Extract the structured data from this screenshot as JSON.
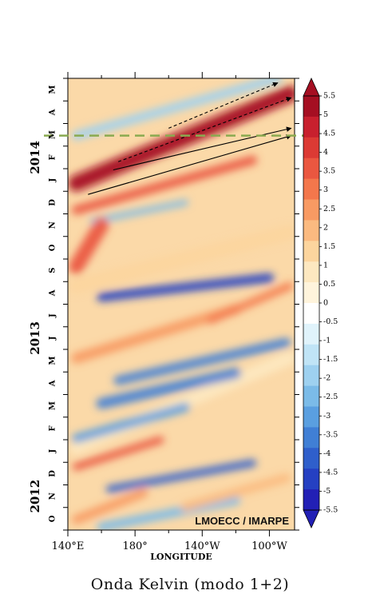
{
  "caption": "Onda Kelvin (modo 1+2)",
  "chart_data": {
    "type": "heatmap",
    "title": "",
    "xlabel": "LONGITUDE",
    "ylabel": "",
    "x_ticks": [
      "140°E",
      "180°",
      "140°W",
      "100°W"
    ],
    "x_range_deg": [
      -220,
      -85
    ],
    "month_ticks": [
      "O",
      "N",
      "D",
      "J",
      "F",
      "M",
      "A",
      "M",
      "J",
      "J",
      "A",
      "S",
      "O",
      "N",
      "D",
      "J",
      "F",
      "M",
      "A",
      "M"
    ],
    "year_labels": [
      {
        "text": "2012",
        "month_index": 1
      },
      {
        "text": "2013",
        "month_index": 8
      },
      {
        "text": "2014",
        "month_index": 16
      }
    ],
    "time_range": [
      "2012-10-01",
      "2014-05-31"
    ],
    "reference_line": {
      "date": "2014-03-15",
      "color": "#8aaa50",
      "style": "dashed"
    },
    "watermark": "LMOECC / IMARPE",
    "colorbar": {
      "labels": [
        "5.5",
        "5",
        "4.5",
        "4",
        "3.5",
        "3",
        "2.5",
        "2",
        "1.5",
        "1",
        "0.5",
        "0",
        "-0.5",
        "-1",
        "-1.5",
        "-2",
        "-2.5",
        "-3",
        "-3.5",
        "-4",
        "-4.5",
        "-5",
        "-5.5"
      ],
      "colors": [
        "#a50f22",
        "#c8202e",
        "#dc3a34",
        "#ea5740",
        "#f3774c",
        "#f89a63",
        "#fbba80",
        "#fcd59e",
        "#fde8c0",
        "#fff4dc",
        "#ffffff",
        "#e0f3fb",
        "#c0e4f6",
        "#9ed1f0",
        "#7bbbe8",
        "#5a9fe0",
        "#407fd5",
        "#2f5fcb",
        "#2540c2",
        "#2220b5"
      ]
    },
    "anomaly_bands": [
      {
        "lon_start": -215,
        "lon_end": -88,
        "date_start": "2014-01-10",
        "date_end": "2014-05-10",
        "value": 5.5,
        "width_days": 22
      },
      {
        "lon_start": -215,
        "lon_end": -110,
        "date_start": "2013-12-05",
        "date_end": "2014-02-10",
        "value": 4.0,
        "width_days": 12
      },
      {
        "lon_start": -205,
        "lon_end": -150,
        "date_start": "2013-11-20",
        "date_end": "2013-12-15",
        "value": -1.5,
        "width_days": 8
      },
      {
        "lon_start": -215,
        "lon_end": -200,
        "date_start": "2013-09-20",
        "date_end": "2013-11-15",
        "value": 4.0,
        "width_days": 20
      },
      {
        "lon_start": -200,
        "lon_end": -100,
        "date_start": "2013-08-10",
        "date_end": "2013-09-05",
        "value": -3.5,
        "width_days": 12
      },
      {
        "lon_start": -135,
        "lon_end": -88,
        "date_start": "2013-07-10",
        "date_end": "2013-08-25",
        "value": 3.5,
        "width_days": 10
      },
      {
        "lon_start": -215,
        "lon_end": -120,
        "date_start": "2013-05-20",
        "date_end": "2013-07-25",
        "value": 3.0,
        "width_days": 14
      },
      {
        "lon_start": -190,
        "lon_end": -90,
        "date_start": "2013-04-20",
        "date_end": "2013-06-10",
        "value": -2.5,
        "width_days": 12
      },
      {
        "lon_start": -200,
        "lon_end": -120,
        "date_start": "2013-03-20",
        "date_end": "2013-04-30",
        "value": -2.5,
        "width_days": 14
      },
      {
        "lon_start": -215,
        "lon_end": -150,
        "date_start": "2013-02-01",
        "date_end": "2013-03-15",
        "value": -2.0,
        "width_days": 12
      },
      {
        "lon_start": -215,
        "lon_end": -165,
        "date_start": "2012-12-25",
        "date_end": "2013-01-30",
        "value": 4.0,
        "width_days": 10
      },
      {
        "lon_start": -195,
        "lon_end": -110,
        "date_start": "2012-11-25",
        "date_end": "2012-12-30",
        "value": -3.0,
        "width_days": 10
      },
      {
        "lon_start": -150,
        "lon_end": -90,
        "date_start": "2012-11-01",
        "date_end": "2012-12-10",
        "value": 2.5,
        "width_days": 12
      },
      {
        "lon_start": -215,
        "lon_end": -175,
        "date_start": "2012-10-15",
        "date_end": "2012-11-20",
        "value": 3.0,
        "width_days": 12
      },
      {
        "lon_start": -200,
        "lon_end": -120,
        "date_start": "2012-10-05",
        "date_end": "2012-11-10",
        "value": -1.5,
        "width_days": 12
      },
      {
        "lon_start": -215,
        "lon_end": -88,
        "date_start": "2013-08-25",
        "date_end": "2013-11-05",
        "value": 2.0,
        "width_days": 20
      },
      {
        "lon_start": -215,
        "lon_end": -88,
        "date_start": "2013-01-20",
        "date_end": "2013-05-20",
        "value": 1.5,
        "width_days": 18
      },
      {
        "lon_start": -215,
        "lon_end": -95,
        "date_start": "2014-03-15",
        "date_end": "2014-05-31",
        "value": -1.0,
        "width_days": 12
      }
    ],
    "arrows": [
      {
        "lon_start": -208,
        "date_start": "2013-12-26",
        "lon_end": -87,
        "date_end": "2014-03-15",
        "style": "solid"
      },
      {
        "lon_start": -193,
        "date_start": "2014-01-28",
        "lon_end": -87,
        "date_end": "2014-03-25",
        "style": "solid"
      },
      {
        "lon_start": -190,
        "date_start": "2014-02-08",
        "lon_end": -87,
        "date_end": "2014-05-05",
        "style": "dashed"
      },
      {
        "lon_start": -160,
        "date_start": "2014-03-25",
        "lon_end": -95,
        "date_end": "2014-05-25",
        "style": "dashed"
      }
    ]
  }
}
